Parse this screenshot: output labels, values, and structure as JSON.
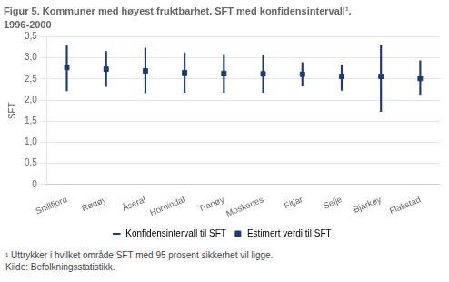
{
  "chart_data": {
    "type": "scatter",
    "title": "Figur 5. Kommuner med høyest fruktbarhet. SFT med konfidensintervall¹.",
    "subtitle": "1996-2000",
    "y_label": "SFT",
    "footnotes": [
      "¹ Uttrykker i hvilket område SFT med 95 prosent sikkerhet vil ligge.",
      "Kilde: Befolkningsstatistikk."
    ],
    "categories": [
      "Snillfjord",
      "Rødøy",
      "Åseral",
      "Hornindal",
      "Tranøy",
      "Moskenes",
      "Fitjar",
      "Selje",
      "Bjarkøy",
      "Flakstad"
    ],
    "series": [
      {
        "name": "Estimert verdi til SFT",
        "color": "#1f3c6e",
        "marker": "square",
        "values": [
          2.77,
          2.73,
          2.69,
          2.65,
          2.63,
          2.62,
          2.61,
          2.56,
          2.56,
          2.51
        ]
      }
    ],
    "error_bars": {
      "name": "Konfidensintervall til SFT",
      "color": "#1f3c6e",
      "lower": [
        2.22,
        2.32,
        2.17,
        2.18,
        2.18,
        2.18,
        2.33,
        2.23,
        1.73,
        2.13
      ],
      "upper": [
        3.29,
        3.15,
        3.23,
        3.12,
        3.08,
        3.07,
        2.89,
        2.83,
        3.31,
        2.93
      ]
    },
    "ylim": [
      0,
      3.5
    ],
    "yticks": [
      0,
      {
        "value": 0.5,
        "label": "0,5"
      },
      {
        "value": 1.0,
        "label": "1,0"
      },
      {
        "value": 1.5,
        "label": "1,5"
      },
      {
        "value": 2.0,
        "label": "2,0"
      },
      {
        "value": 2.5,
        "label": "2,5"
      },
      {
        "value": 3.0,
        "label": "3,0"
      },
      {
        "value": 3.5,
        "label": "3,5"
      }
    ],
    "grid": true,
    "legend": "bottom"
  }
}
